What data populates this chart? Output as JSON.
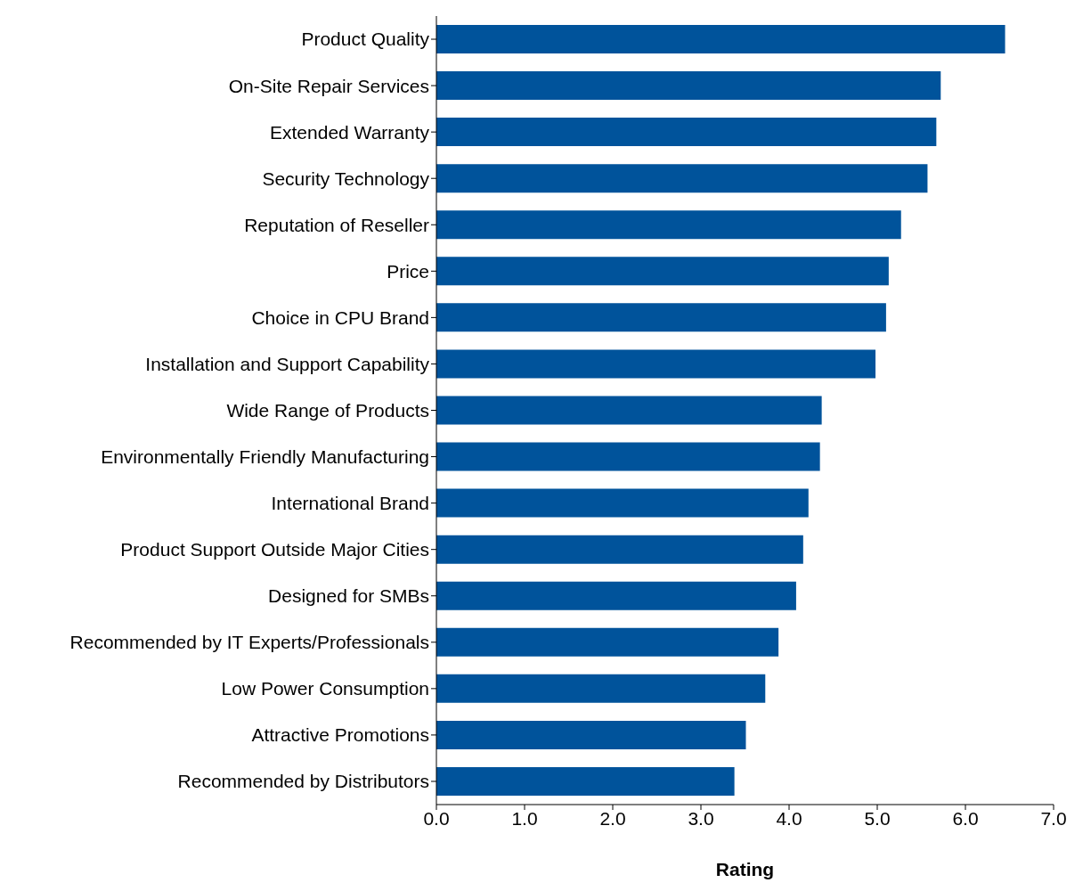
{
  "chart_data": {
    "type": "bar",
    "orientation": "horizontal",
    "xlabel": "Rating",
    "categories": [
      "Product Quality",
      "On-Site Repair Services",
      "Extended Warranty",
      "Security Technology",
      "Reputation of Reseller",
      "Price",
      "Choice in CPU Brand",
      "Installation and Support Capability",
      "Wide Range of Products",
      "Environmentally Friendly Manufacturing",
      "International Brand",
      "Product Support Outside Major Cities",
      "Designed for SMBs",
      "Recommended by IT Experts/Professionals",
      "Low Power Consumption",
      "Attractive Promotions",
      "Recommended by Distributors"
    ],
    "values": [
      6.45,
      5.72,
      5.67,
      5.57,
      5.27,
      5.13,
      5.1,
      4.98,
      4.37,
      4.35,
      4.22,
      4.16,
      4.08,
      3.88,
      3.73,
      3.51,
      3.38
    ],
    "color": "#00539b",
    "xlim": [
      0,
      7
    ],
    "xticks": [
      {
        "value": 0,
        "label": "0.0"
      },
      {
        "value": 1,
        "label": "1.0"
      },
      {
        "value": 2,
        "label": "2.0"
      },
      {
        "value": 3,
        "label": "3.0"
      },
      {
        "value": 4,
        "label": "4.0"
      },
      {
        "value": 5,
        "label": "5.0"
      },
      {
        "value": 6,
        "label": "6.0"
      },
      {
        "value": 7,
        "label": "7.0"
      }
    ],
    "grid": false,
    "legend": false
  }
}
